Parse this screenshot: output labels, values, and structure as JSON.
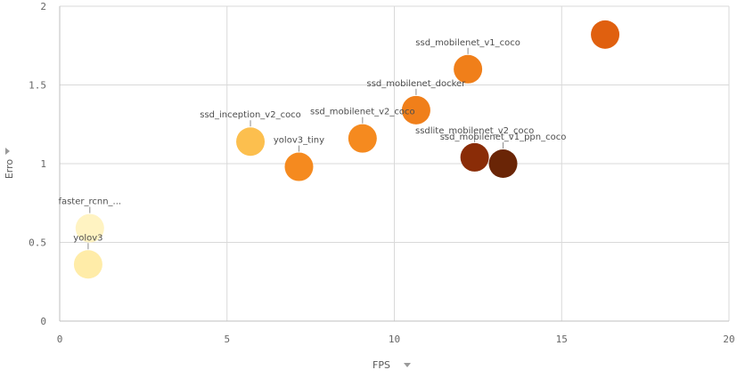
{
  "chart_data": {
    "type": "scatter",
    "title": "",
    "xlabel": "FPS",
    "ylabel": "Erro",
    "xlim": [
      0,
      20
    ],
    "ylim": [
      0,
      2
    ],
    "x_ticks": [
      "0",
      "5",
      "10",
      "15",
      "20"
    ],
    "y_ticks": [
      "0",
      "0.5",
      "1",
      "1.5",
      "2"
    ],
    "grid": true,
    "points": [
      {
        "label": "faster_rcnn_...",
        "x": 0.9,
        "y": 0.59,
        "color": "#fff3c2"
      },
      {
        "label": "yolov3",
        "x": 0.85,
        "y": 0.36,
        "color": "#ffeca8"
      },
      {
        "label": "ssd_inception_v2_coco",
        "x": 5.7,
        "y": 1.14,
        "color": "#fcbf4e"
      },
      {
        "label": "yolov3_tiny",
        "x": 7.15,
        "y": 0.98,
        "color": "#f58a1f"
      },
      {
        "label": "ssd_mobilenet_v2_coco",
        "x": 9.05,
        "y": 1.16,
        "color": "#f58a1f"
      },
      {
        "label": "ssd_mobilenet_docker",
        "x": 10.65,
        "y": 1.34,
        "color": "#f07f1a"
      },
      {
        "label": "ssd_mobilenet_v1_coco",
        "x": 12.2,
        "y": 1.6,
        "color": "#f07f1a"
      },
      {
        "label": "",
        "x": 16.3,
        "y": 1.82,
        "color": "#e0600f"
      },
      {
        "label": "ssdlite_mobilenet_v2_coco",
        "x": 12.4,
        "y": 1.04,
        "color": "#8a2c07"
      },
      {
        "label": "ssd_mobilenet_v1_ppn_coco",
        "x": 13.25,
        "y": 1.0,
        "color": "#6a2506"
      }
    ]
  }
}
